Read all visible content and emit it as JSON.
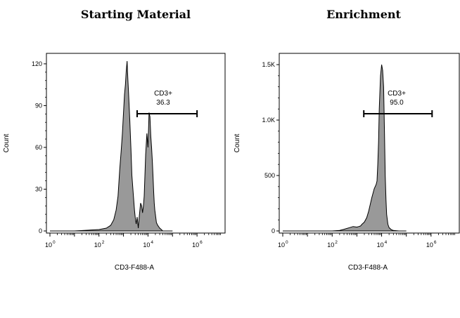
{
  "chart_data": [
    {
      "type": "area",
      "title": "Starting Material",
      "xlabel": "CD3-F488-A",
      "ylabel": "Count",
      "x_scale": "log",
      "xlim": [
        1,
        10000000
      ],
      "ylim": [
        0,
        125
      ],
      "yticks": [
        0,
        30,
        60,
        90,
        120
      ],
      "ytick_labels": [
        "0",
        "30",
        "60",
        "90",
        "120"
      ],
      "xticks": [
        1,
        100,
        10000,
        1000000
      ],
      "xtick_labels": [
        {
          "base": "10",
          "exp": "0"
        },
        {
          "base": "10",
          "exp": "2"
        },
        {
          "base": "10",
          "exp": "4"
        },
        {
          "base": "10",
          "exp": "6"
        }
      ],
      "fill_color": "#999999",
      "x": [
        1,
        10,
        100,
        200,
        300,
        400,
        500,
        600,
        700,
        800,
        900,
        1000,
        1100,
        1200,
        1300,
        1400,
        1500,
        1600,
        1800,
        2000,
        2200,
        2500,
        2800,
        3000,
        3300,
        3600,
        4000,
        4500,
        5000,
        5500,
        6000,
        6500,
        7000,
        8000,
        9000,
        10000,
        11000,
        12000,
        13000,
        14000,
        15000,
        16000,
        17000,
        18000,
        19000,
        20000,
        22000,
        25000,
        30000,
        35000,
        40000,
        60000,
        100000
      ],
      "y": [
        0,
        0,
        1,
        2,
        4,
        8,
        15,
        25,
        44,
        57,
        70,
        85,
        98,
        105,
        115,
        122,
        110,
        100,
        80,
        60,
        40,
        27,
        15,
        10,
        5,
        10,
        2,
        12,
        20,
        18,
        13,
        18,
        25,
        55,
        70,
        60,
        85,
        82,
        68,
        60,
        50,
        40,
        28,
        20,
        15,
        12,
        6,
        4,
        2,
        1,
        0,
        0,
        0
      ],
      "gates": [
        {
          "name": "CD3+",
          "value": "36.3",
          "from": 3600,
          "to": 1000000
        }
      ]
    },
    {
      "type": "area",
      "title": "Enrichment",
      "xlabel": "CD3-F488-A",
      "ylabel": "Count",
      "x_scale": "log",
      "xlim": [
        1,
        10000000
      ],
      "ylim": [
        0,
        1570
      ],
      "yticks": [
        0,
        500,
        1000,
        1500
      ],
      "ytick_labels": [
        "0",
        "500",
        "1.0K",
        "1.5K"
      ],
      "xticks": [
        1,
        100,
        10000,
        1000000
      ],
      "xtick_labels": [
        {
          "base": "10",
          "exp": "0"
        },
        {
          "base": "10",
          "exp": "2"
        },
        {
          "base": "10",
          "exp": "4"
        },
        {
          "base": "10",
          "exp": "6"
        }
      ],
      "fill_color": "#999999",
      "x": [
        1,
        100,
        200,
        300,
        500,
        700,
        1000,
        1200,
        1400,
        1600,
        2000,
        2500,
        3000,
        4000,
        5000,
        5500,
        6000,
        6500,
        7000,
        7500,
        8000,
        9000,
        10000,
        11000,
        12000,
        13000,
        14000,
        15000,
        16000,
        18000,
        20000,
        25000,
        30000,
        50000,
        100000
      ],
      "y": [
        0,
        0,
        5,
        15,
        30,
        40,
        35,
        40,
        45,
        60,
        80,
        120,
        180,
        300,
        380,
        400,
        420,
        450,
        600,
        800,
        1100,
        1400,
        1500,
        1450,
        1300,
        900,
        500,
        280,
        150,
        60,
        30,
        10,
        5,
        0,
        0
      ],
      "gates": [
        {
          "name": "CD3+",
          "value": "95.0",
          "from": 1900,
          "to": 1100000
        }
      ]
    }
  ]
}
